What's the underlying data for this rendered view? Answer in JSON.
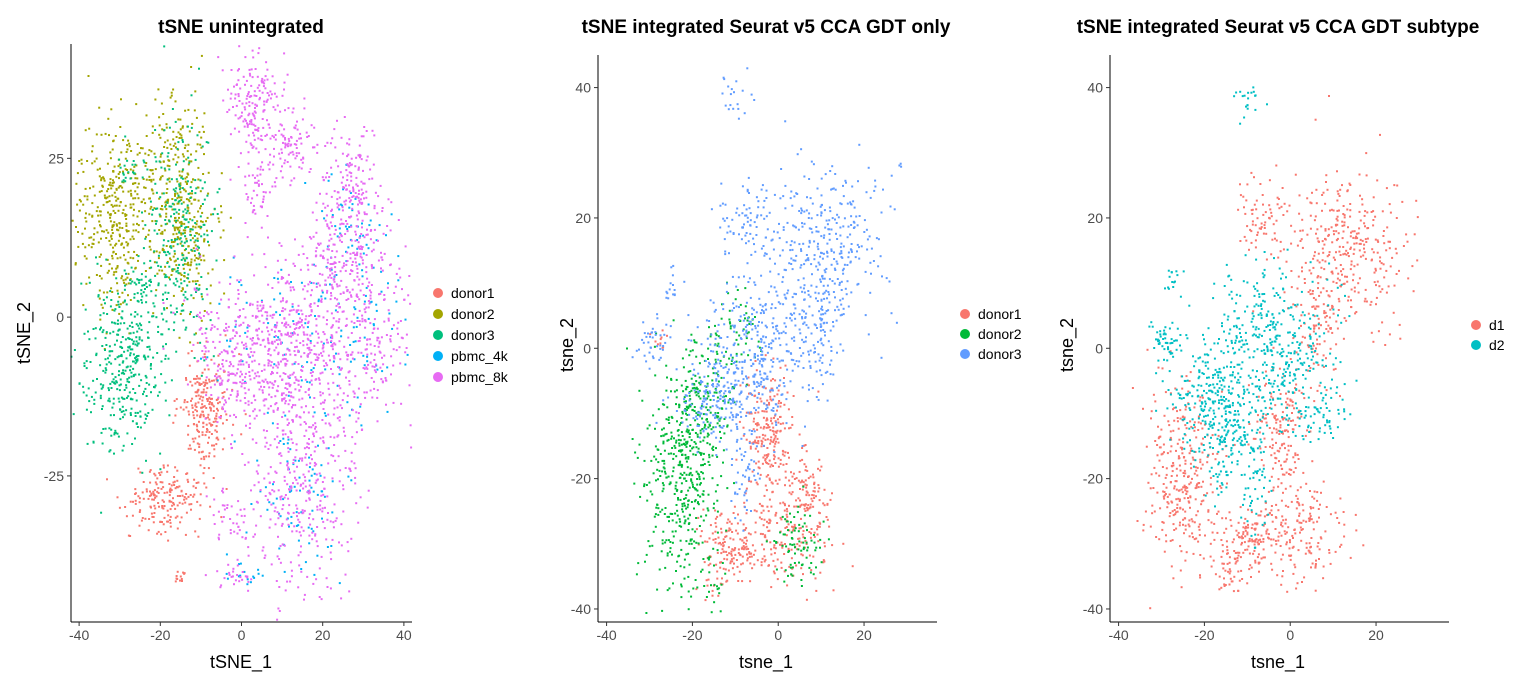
{
  "chart_data": [
    {
      "type": "scatter",
      "title": "tSNE unintegrated",
      "xlabel": "tSNE_1",
      "ylabel": "tSNE_2",
      "xlim": [
        -42,
        42
      ],
      "ylim": [
        -48,
        43
      ],
      "xticks": [
        -40,
        -20,
        0,
        20,
        40
      ],
      "xtick_labels": [
        "-40",
        "-20",
        "0",
        "20",
        "40"
      ],
      "yticks": [
        -25,
        0,
        25
      ],
      "ytick_labels": [
        "-25",
        "0",
        "25"
      ],
      "grid": false,
      "legend_position": "right",
      "series": [
        {
          "name": "donor1",
          "color": "#F8766D",
          "clusters": [
            [
              -9,
              -15,
              3,
              4.5,
              220
            ],
            [
              -19,
              -28.5,
              4.5,
              2.5,
              180
            ],
            [
              -15,
              -41,
              1,
              0.6,
              12
            ]
          ]
        },
        {
          "name": "donor2",
          "color": "#A3A500",
          "clusters": [
            [
              -31,
              16,
              5,
              7,
              380
            ],
            [
              -16,
              21,
              4.5,
              8,
              260
            ],
            [
              -13,
              10,
              3,
              5,
              120
            ]
          ]
        },
        {
          "name": "donor3",
          "color": "#00BF7D",
          "clusters": [
            [
              -29,
              -7,
              5,
              7,
              380
            ],
            [
              -15,
              14,
              4,
              9,
              260
            ],
            [
              -24,
              5,
              2,
              2,
              30
            ],
            [
              -28,
              23,
              2,
              2,
              20
            ]
          ]
        },
        {
          "name": "pbmc_4k",
          "color": "#00B0F6",
          "clusters": [
            [
              15,
              -26,
              6,
              7,
              90
            ],
            [
              30,
              2,
              6,
              8,
              90
            ],
            [
              8,
              -2,
              10,
              6,
              70
            ],
            [
              2,
              -40,
              3,
              2,
              15
            ],
            [
              25,
              15,
              4,
              4,
              30
            ]
          ]
        },
        {
          "name": "pbmc_8k",
          "color": "#E76BF3",
          "clusters": [
            [
              3,
              33,
              3,
              4,
              170
            ],
            [
              12,
              27,
              3,
              3,
              90
            ],
            [
              27,
              18,
              4,
              6,
              200
            ],
            [
              30,
              0,
              6,
              9,
              330
            ],
            [
              14,
              -5,
              6,
              7,
              330
            ],
            [
              2,
              -3,
              8,
              5,
              230
            ],
            [
              -2,
              -10,
              4,
              4,
              90
            ],
            [
              15,
              -27,
              7,
              8,
              330
            ],
            [
              4,
              20,
              2,
              3,
              50
            ],
            [
              -3,
              -32,
              3,
              2,
              40
            ],
            [
              -2,
              -41,
              2,
              1.5,
              25
            ],
            [
              22,
              7,
              3,
              4,
              60
            ],
            [
              10,
              -13,
              4,
              3,
              60
            ]
          ]
        }
      ]
    },
    {
      "type": "scatter",
      "title": "tSNE integrated Seurat v5 CCA GDT only",
      "xlabel": "tsne_1",
      "ylabel": "tsne_2",
      "xlim": [
        -42,
        37
      ],
      "ylim": [
        -42,
        45
      ],
      "xticks": [
        -40,
        -20,
        0,
        20
      ],
      "xtick_labels": [
        "-40",
        "-20",
        "0",
        "20"
      ],
      "yticks": [
        -40,
        -20,
        0,
        20,
        40
      ],
      "ytick_labels": [
        "-40",
        "-20",
        "0",
        "20",
        "40"
      ],
      "grid": false,
      "legend_position": "right",
      "series": [
        {
          "name": "donor1",
          "color": "#F8766D",
          "clusters": [
            [
              -2,
              -13,
              3,
              5,
              220
            ],
            [
              -10,
              -30,
              4,
              2.5,
              140
            ],
            [
              3,
              -28,
              5,
              4,
              180
            ],
            [
              7,
              -22,
              2,
              3,
              70
            ],
            [
              -14,
              -35,
              2,
              2,
              30
            ],
            [
              -27,
              2,
              1,
              1,
              10
            ]
          ]
        },
        {
          "name": "donor2",
          "color": "#00BA38",
          "clusters": [
            [
              -23,
              -20,
              4.5,
              8,
              420
            ],
            [
              -18,
              -8,
              4,
              4,
              160
            ],
            [
              5,
              -30,
              3,
              3,
              80
            ],
            [
              -16,
              -36,
              2,
              2,
              20
            ],
            [
              -10,
              2,
              3,
              3,
              60
            ]
          ]
        },
        {
          "name": "donor3",
          "color": "#619CFF",
          "clusters": [
            [
              11,
              16,
              7,
              6,
              330
            ],
            [
              -5,
              0,
              6,
              6,
              330
            ],
            [
              -15,
              -8,
              5,
              3,
              170
            ],
            [
              -7,
              20,
              3,
              3,
              70
            ],
            [
              9,
              2,
              3,
              5,
              100
            ],
            [
              -29,
              1,
              2,
              2,
              40
            ],
            [
              -10,
              38,
              2,
              1.5,
              20
            ],
            [
              -8,
              -20,
              2,
              4,
              50
            ],
            [
              -25,
              10,
              1.5,
              1.5,
              15
            ]
          ]
        }
      ]
    },
    {
      "type": "scatter",
      "title": "tSNE integrated Seurat v5 CCA GDT subtype",
      "xlabel": "tsne_1",
      "ylabel": "tsne_2",
      "xlim": [
        -42,
        37
      ],
      "ylim": [
        -42,
        45
      ],
      "xticks": [
        -40,
        -20,
        0,
        20
      ],
      "xtick_labels": [
        "-40",
        "-20",
        "0",
        "20"
      ],
      "yticks": [
        -40,
        -20,
        0,
        20,
        40
      ],
      "ytick_labels": [
        "-40",
        "-20",
        "0",
        "20",
        "40"
      ],
      "grid": false,
      "legend_position": "right",
      "series": [
        {
          "name": "d1",
          "color": "#F8766D",
          "clusters": [
            [
              13,
              16,
              7,
              6,
              330
            ],
            [
              -7,
              20,
              3,
              3,
              70
            ],
            [
              7,
              4,
              3,
              5,
              90
            ],
            [
              -25,
              -20,
              4,
              7,
              320
            ],
            [
              -2,
              -13,
              3,
              5,
              160
            ],
            [
              -10,
              -30,
              4,
              2.5,
              130
            ],
            [
              3,
              -28,
              5,
              4,
              170
            ],
            [
              -14,
              -35,
              2,
              2,
              30
            ]
          ]
        },
        {
          "name": "d2",
          "color": "#00BFC4",
          "clusters": [
            [
              -5,
              0,
              7,
              6,
              420
            ],
            [
              -18,
              -8,
              5,
              4,
              220
            ],
            [
              -14,
              -15,
              3,
              5,
              110
            ],
            [
              -29,
              1,
              2,
              2,
              50
            ],
            [
              -8,
              -20,
              2,
              4,
              50
            ],
            [
              -10,
              38,
              2,
              1.5,
              20
            ],
            [
              -27,
              10,
              1.5,
              1.5,
              15
            ],
            [
              7,
              -10,
              3,
              3,
              60
            ]
          ]
        }
      ]
    }
  ]
}
